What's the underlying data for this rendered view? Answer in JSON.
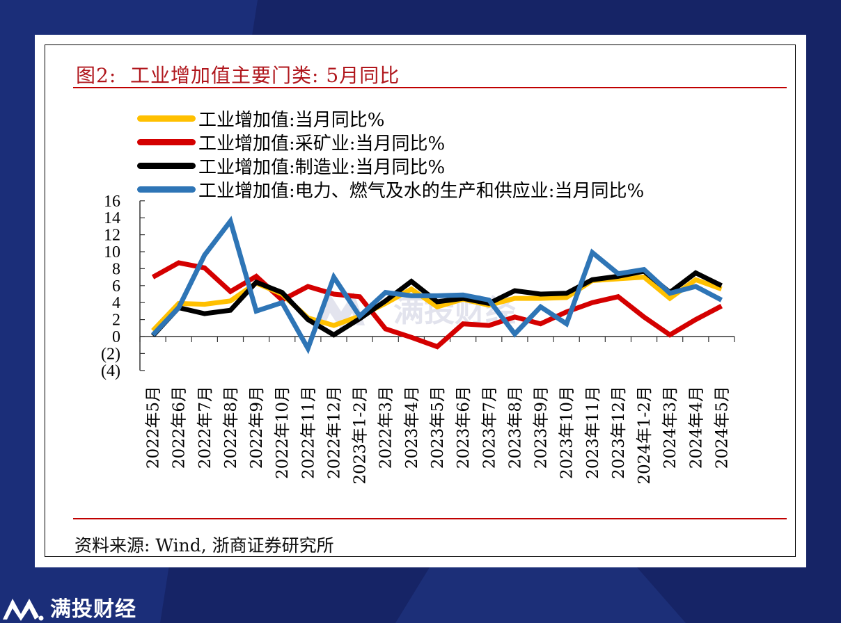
{
  "figure": {
    "title": "图2:  工业增加值主要门类: 5月同比",
    "source": "资料来源: Wind, 浙商证券研究所"
  },
  "brand": {
    "name": "满投财经",
    "watermark": "满投财经",
    "logo_icon": "mountain-m-logo-icon"
  },
  "colors": {
    "background": "#162466",
    "background_accent": "#1c2f78",
    "title_red": "#b0161c",
    "rule_red": "#c00000"
  },
  "chart_data": {
    "type": "line",
    "title": "图2: 工业增加值主要门类: 5月同比",
    "xlabel": "",
    "ylabel": "",
    "ylim": [
      -4,
      16
    ],
    "yticks": [
      16,
      14,
      12,
      10,
      8,
      6,
      4,
      2,
      0,
      -2,
      -4
    ],
    "ytick_labels": [
      "16",
      "14",
      "12",
      "10",
      "8",
      "6",
      "4",
      "2",
      "0",
      "(2)",
      "(4)"
    ],
    "grid": false,
    "legend_position": "top-left",
    "categories": [
      "2022年5月",
      "2022年6月",
      "2022年7月",
      "2022年8月",
      "2022年9月",
      "2022年10月",
      "2022年11月",
      "2022年12月",
      "2023年1-2月",
      "2022年3月",
      "2023年4月",
      "2023年5月",
      "2023年6月",
      "2023年7月",
      "2023年8月",
      "2023年9月",
      "2023年10月",
      "2023年11月",
      "2023年12月",
      "2024年1-2月",
      "2024年3月",
      "2024年4月",
      "2024年5月"
    ],
    "series": [
      {
        "name": "工业增加值:当月同比%",
        "color": "#ffc000",
        "values": [
          0.7,
          3.9,
          3.8,
          4.2,
          6.3,
          5.0,
          2.2,
          1.3,
          2.4,
          3.9,
          5.6,
          3.5,
          4.4,
          3.7,
          4.5,
          4.5,
          4.6,
          6.6,
          6.8,
          7.0,
          4.5,
          6.7,
          5.6
        ]
      },
      {
        "name": "工业增加值:采矿业:当月同比%",
        "color": "#d40000",
        "values": [
          7.0,
          8.7,
          8.1,
          5.3,
          7.1,
          4.3,
          5.9,
          5.0,
          4.7,
          0.9,
          -0.1,
          -1.2,
          1.5,
          1.3,
          2.3,
          1.5,
          2.9,
          4.0,
          4.7,
          2.3,
          0.2,
          2.0,
          3.6
        ]
      },
      {
        "name": "工业增加值:制造业:当月同比%",
        "color": "#000000",
        "values": [
          0.1,
          3.4,
          2.7,
          3.1,
          6.4,
          5.2,
          2.0,
          0.2,
          2.1,
          4.2,
          6.5,
          4.1,
          4.5,
          3.9,
          5.4,
          5.0,
          5.1,
          6.7,
          7.1,
          7.7,
          5.2,
          7.5,
          6.0
        ]
      },
      {
        "name": "工业增加值:电力、燃气及水的生产和供应业:当月同比%",
        "color": "#2e75b6",
        "values": [
          0.2,
          3.4,
          9.6,
          13.6,
          3.0,
          4.0,
          -1.4,
          7.0,
          2.4,
          5.2,
          4.8,
          4.8,
          4.9,
          4.3,
          0.3,
          3.5,
          1.5,
          9.9,
          7.4,
          7.9,
          5.1,
          5.9,
          4.3
        ]
      }
    ]
  }
}
